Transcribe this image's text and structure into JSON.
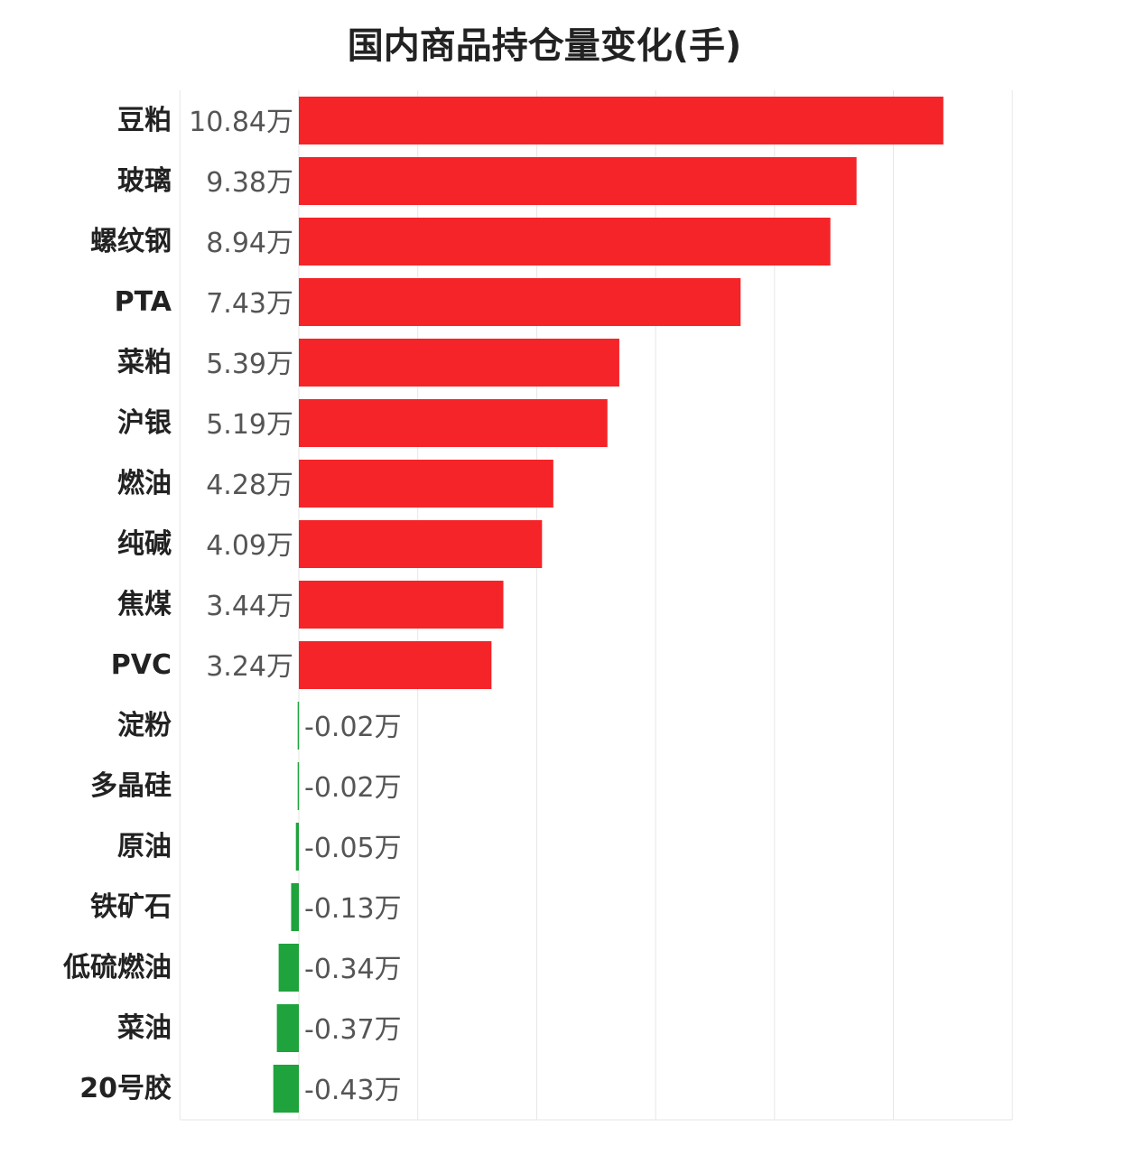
{
  "chart_data": {
    "type": "bar",
    "orientation": "horizontal",
    "title": "国内商品持仓量变化(手)",
    "categories": [
      "豆粕",
      "玻璃",
      "螺纹钢",
      "PTA",
      "菜粕",
      "沪银",
      "燃油",
      "纯碱",
      "焦煤",
      "PVC",
      "淀粉",
      "多晶硅",
      "原油",
      "铁矿石",
      "低硫燃油",
      "菜油",
      "20号胶"
    ],
    "values": [
      10.84,
      9.38,
      8.94,
      7.43,
      5.39,
      5.19,
      4.28,
      4.09,
      3.44,
      3.24,
      -0.02,
      -0.02,
      -0.05,
      -0.13,
      -0.34,
      -0.37,
      -0.43
    ],
    "value_labels": [
      "10.84万",
      "9.38万",
      "8.94万",
      "7.43万",
      "5.39万",
      "5.19万",
      "4.28万",
      "4.09万",
      "3.44万",
      "3.24万",
      "-0.02万",
      "-0.02万",
      "-0.05万",
      "-0.13万",
      "-0.34万",
      "-0.37万",
      "-0.43万"
    ],
    "unit": "万",
    "xlim": [
      -2,
      12
    ],
    "grid": true,
    "colors": {
      "positive": "#f52428",
      "negative": "#1fa33c",
      "grid": "#e6e6e6"
    }
  }
}
